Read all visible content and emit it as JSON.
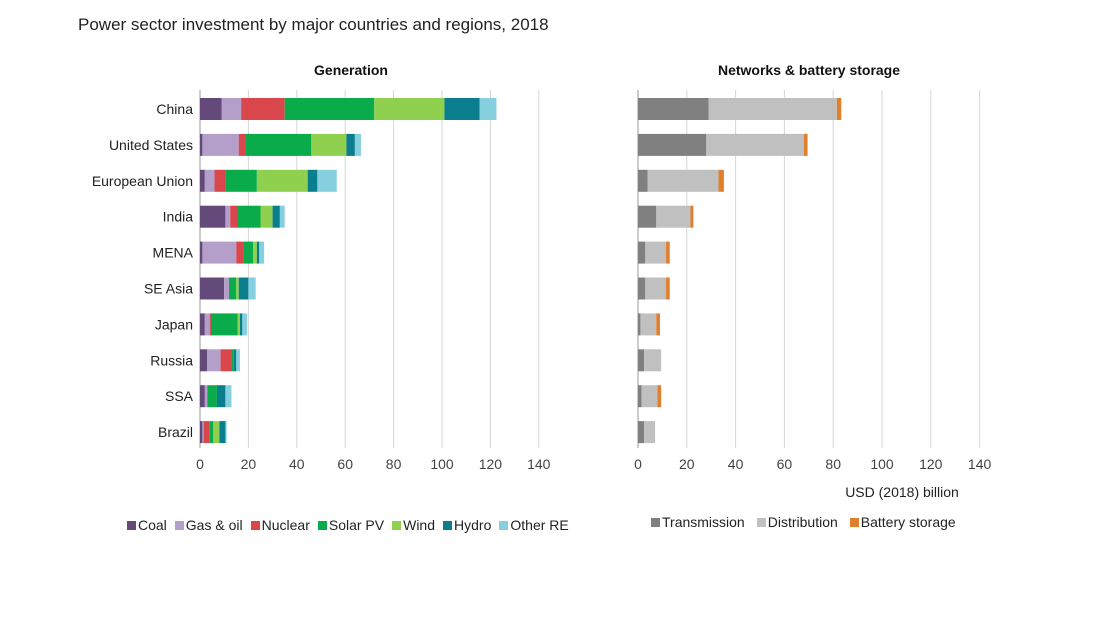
{
  "title": "Power sector investment by major countries and regions, 2018",
  "chart_data": {
    "type": "bar",
    "orientation": "horizontal",
    "stacked": true,
    "categories": [
      "China",
      "United States",
      "European Union",
      "India",
      "MENA",
      "SE Asia",
      "Japan",
      "Russia",
      "SSA",
      "Brazil"
    ],
    "panels": [
      {
        "title": "Generation",
        "xlim": [
          0,
          140
        ],
        "xticks": [
          "0",
          "20",
          "40",
          "60",
          "80",
          "100",
          "120",
          "140"
        ],
        "grid": true,
        "series": [
          {
            "name": "Coal",
            "color": "#634a7b",
            "values": [
              9,
              1,
              2,
              10.5,
              1,
              10,
              2,
              3,
              2,
              1
            ]
          },
          {
            "name": "Gas & oil",
            "color": "#b49fcb",
            "values": [
              8,
              15,
              4,
              2,
              14,
              2,
              2,
              5.5,
              1,
              0.5
            ]
          },
          {
            "name": "Nuclear",
            "color": "#d9474c",
            "values": [
              18,
              3,
              4.5,
              3,
              3,
              0,
              0.5,
              4.5,
              0,
              2.5
            ]
          },
          {
            "name": "Solar PV",
            "color": "#0aab4b",
            "values": [
              37,
              27,
              13,
              9.5,
              4,
              3,
              11,
              1,
              4,
              1.5
            ]
          },
          {
            "name": "Wind",
            "color": "#8fd14f",
            "values": [
              29,
              14.5,
              21,
              5,
              1.5,
              1,
              1,
              0,
              0,
              2.5
            ]
          },
          {
            "name": "Hydro",
            "color": "#0a7e8c",
            "values": [
              14.5,
              3.5,
              4,
              3,
              1,
              4,
              1,
              1,
              3.5,
              2.5
            ]
          },
          {
            "name": "Other RE",
            "color": "#86cfde",
            "values": [
              7,
              2.5,
              8,
              2,
              2,
              3,
              2,
              1.5,
              2.5,
              0.5
            ]
          }
        ]
      },
      {
        "title": "Networks & battery storage",
        "xlim": [
          0,
          140
        ],
        "xticks": [
          "0",
          "20",
          "40",
          "60",
          "80",
          "100",
          "120",
          "140"
        ],
        "grid": true,
        "xlabel": "USD (2018) billion",
        "series": [
          {
            "name": "Transmission",
            "color": "#808080",
            "values": [
              29,
              28,
              4,
              7.5,
              3,
              3,
              1,
              2.5,
              1.5,
              2.5
            ]
          },
          {
            "name": "Distribution",
            "color": "#c0c0c0",
            "values": [
              52.5,
              40,
              29,
              14,
              8.5,
              8.5,
              6.5,
              7,
              6.5,
              4.5
            ]
          },
          {
            "name": "Battery storage",
            "color": "#e07f2c",
            "values": [
              1.8,
              1.5,
              2.2,
              1.2,
              1.5,
              1.5,
              1.5,
              0,
              1.5,
              0
            ]
          }
        ]
      }
    ]
  }
}
